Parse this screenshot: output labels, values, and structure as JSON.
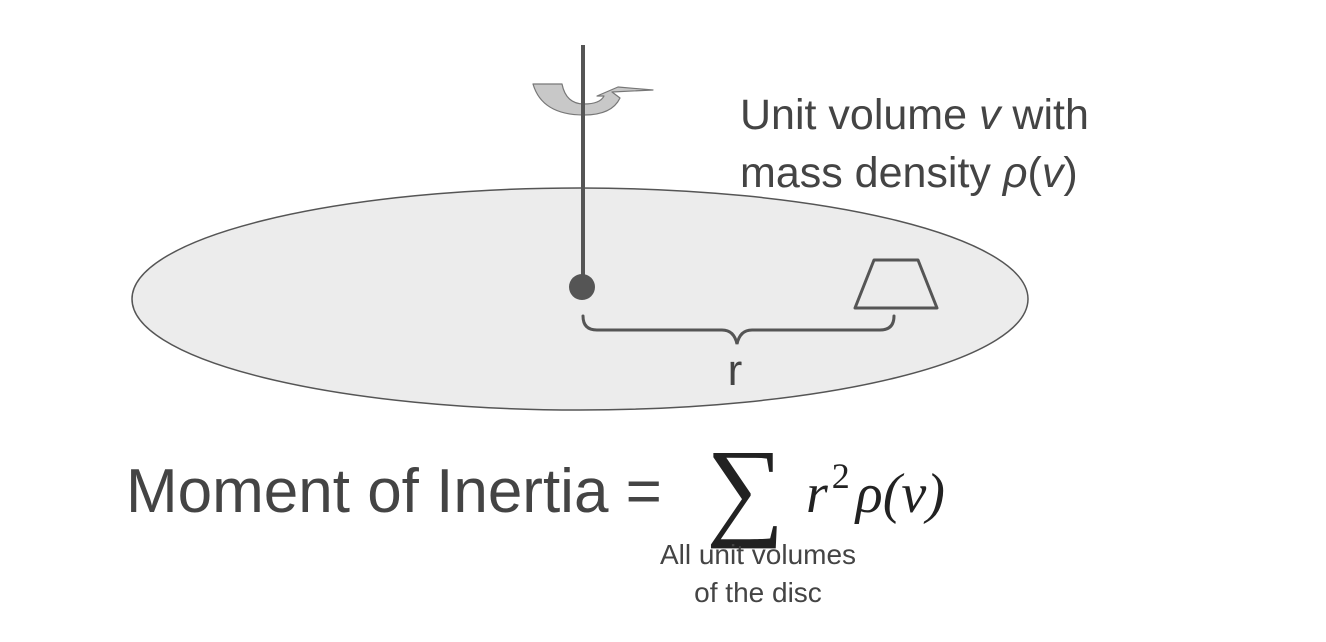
{
  "colors": {
    "text": "#444444",
    "disc_fill": "#ececec",
    "disc_stroke": "#555555",
    "shaft": "#555555",
    "arrow_fill": "#c8c8c8",
    "element_stroke": "#555555"
  },
  "unit_volume_label": {
    "line1_prefix": "Unit volume ",
    "line1_var": "v",
    "line1_suffix": " with",
    "line2_prefix": "mass density ",
    "line2_rho": "ρ",
    "line2_open": "(",
    "line2_var": "v",
    "line2_close": ")"
  },
  "radius_label": "r",
  "equation": {
    "lhs": "Moment of Inertia =",
    "sum_symbol": "∑",
    "r": "r",
    "exponent": "2",
    "rho": "ρ",
    "arg": "(v)",
    "sum_caption_line1": "All unit volumes",
    "sum_caption_line2": "of the disc"
  }
}
